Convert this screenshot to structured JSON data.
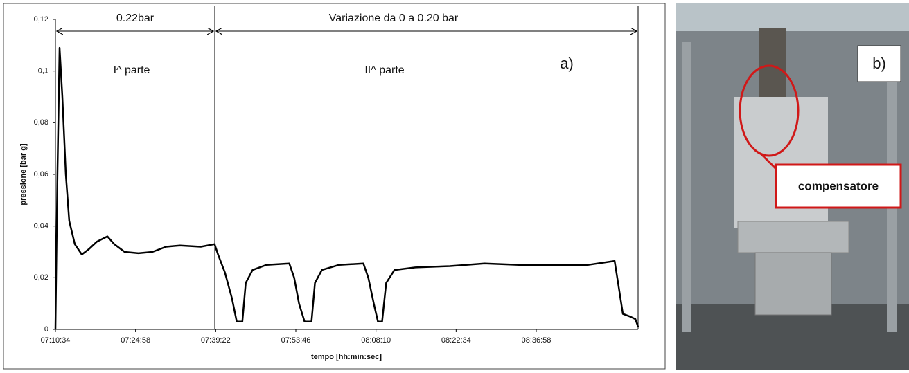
{
  "chart_data": {
    "type": "line",
    "xlabel": "tempo [hh:min:sec]",
    "ylabel": "pressione [bar g]",
    "annotations": [
      "0.22bar",
      "Variazione da 0 a 0.20 bar",
      "I^  parte",
      "II^  parte",
      "a)"
    ],
    "x": [
      "07:10:34",
      "07:10:56",
      "07:11:19",
      "07:11:49",
      "07:12:26",
      "07:13:03",
      "07:14:03",
      "07:15:18",
      "07:16:32",
      "07:18:02",
      "07:19:54",
      "07:21:08",
      "07:23:00",
      "07:25:29",
      "07:27:59",
      "07:30:28",
      "07:32:57",
      "07:36:41",
      "07:39:10",
      "07:39:47",
      "07:41:02",
      "07:42:17",
      "07:43:09",
      "07:44:09",
      "07:44:46",
      "07:46:00",
      "07:48:30",
      "07:52:36",
      "07:53:28",
      "07:54:20",
      "07:55:20",
      "07:56:35",
      "07:57:12",
      "07:58:27",
      "08:01:33",
      "08:05:54",
      "08:06:47",
      "08:07:46",
      "08:08:31",
      "08:09:16",
      "08:10:00",
      "08:11:30",
      "08:15:14",
      "08:21:27",
      "08:27:40",
      "08:33:53",
      "08:40:06",
      "08:46:19",
      "08:51:03",
      "08:51:40",
      "08:52:32",
      "08:53:47",
      "08:54:47",
      "08:55:16"
    ],
    "values": [
      0,
      0.06,
      0.109,
      0.09,
      0.06,
      0.042,
      0.033,
      0.029,
      0.031,
      0.034,
      0.036,
      0.033,
      0.03,
      0.0295,
      0.03,
      0.032,
      0.0325,
      0.032,
      0.033,
      0.029,
      0.022,
      0.012,
      0.003,
      0.003,
      0.018,
      0.023,
      0.025,
      0.0255,
      0.02,
      0.01,
      0.003,
      0.003,
      0.018,
      0.023,
      0.025,
      0.0255,
      0.02,
      0.01,
      0.003,
      0.003,
      0.018,
      0.023,
      0.024,
      0.0245,
      0.0255,
      0.025,
      0.025,
      0.025,
      0.0265,
      0.018,
      0.006,
      0.005,
      0.004,
      0.001
    ],
    "color": "#000000",
    "xlim": [
      "07:10:34",
      "08:55:16"
    ],
    "xticks": [
      "07:10:34",
      "07:24:58",
      "07:39:22",
      "07:53:46",
      "08:08:10",
      "08:22:34",
      "08:36:58"
    ],
    "ylim": [
      0,
      0.12
    ],
    "yticks": [
      0,
      {
        "value": 0.02,
        "label": "0,02"
      },
      {
        "value": 0.04,
        "label": "0,04"
      },
      {
        "value": 0.06,
        "label": "0,06"
      },
      {
        "value": 0.08,
        "label": "0,08"
      },
      {
        "value": 0.1,
        "label": "0,1"
      },
      {
        "value": 0.12,
        "label": "0,12"
      }
    ],
    "grid": false
  },
  "photo": {
    "label": "b)",
    "callout": "compensatore"
  }
}
